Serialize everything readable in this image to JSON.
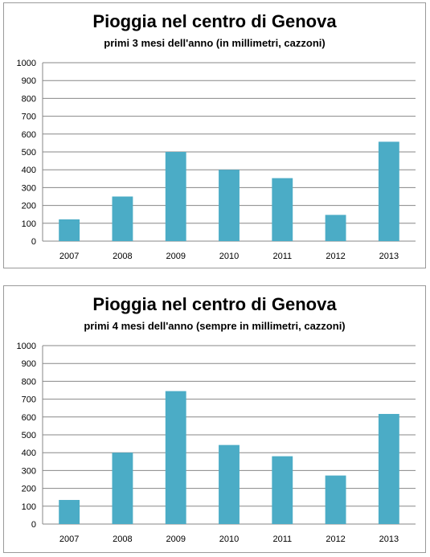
{
  "chart_data": [
    {
      "type": "bar",
      "title": "Pioggia nel centro di Genova",
      "subtitle": "primi 3 mesi dell'anno (in millimetri, cazzoni)",
      "categories": [
        "2007",
        "2008",
        "2009",
        "2010",
        "2011",
        "2012",
        "2013"
      ],
      "values": [
        122,
        250,
        500,
        400,
        353,
        147,
        557
      ],
      "ylim": [
        0,
        1000
      ],
      "yticks": [
        0,
        100,
        200,
        300,
        400,
        500,
        600,
        700,
        800,
        900,
        1000
      ],
      "grid": true,
      "bar_color": "#4bacc6",
      "grid_color": "#878787"
    },
    {
      "type": "bar",
      "title": "Pioggia nel centro di Genova",
      "subtitle": "primi 4 mesi dell'anno (sempre in millimetri, cazzoni)",
      "categories": [
        "2007",
        "2008",
        "2009",
        "2010",
        "2011",
        "2012",
        "2013"
      ],
      "values": [
        135,
        400,
        745,
        443,
        380,
        272,
        617
      ],
      "ylim": [
        0,
        1000
      ],
      "yticks": [
        0,
        100,
        200,
        300,
        400,
        500,
        600,
        700,
        800,
        900,
        1000
      ],
      "grid": true,
      "bar_color": "#4bacc6",
      "grid_color": "#878787"
    }
  ]
}
